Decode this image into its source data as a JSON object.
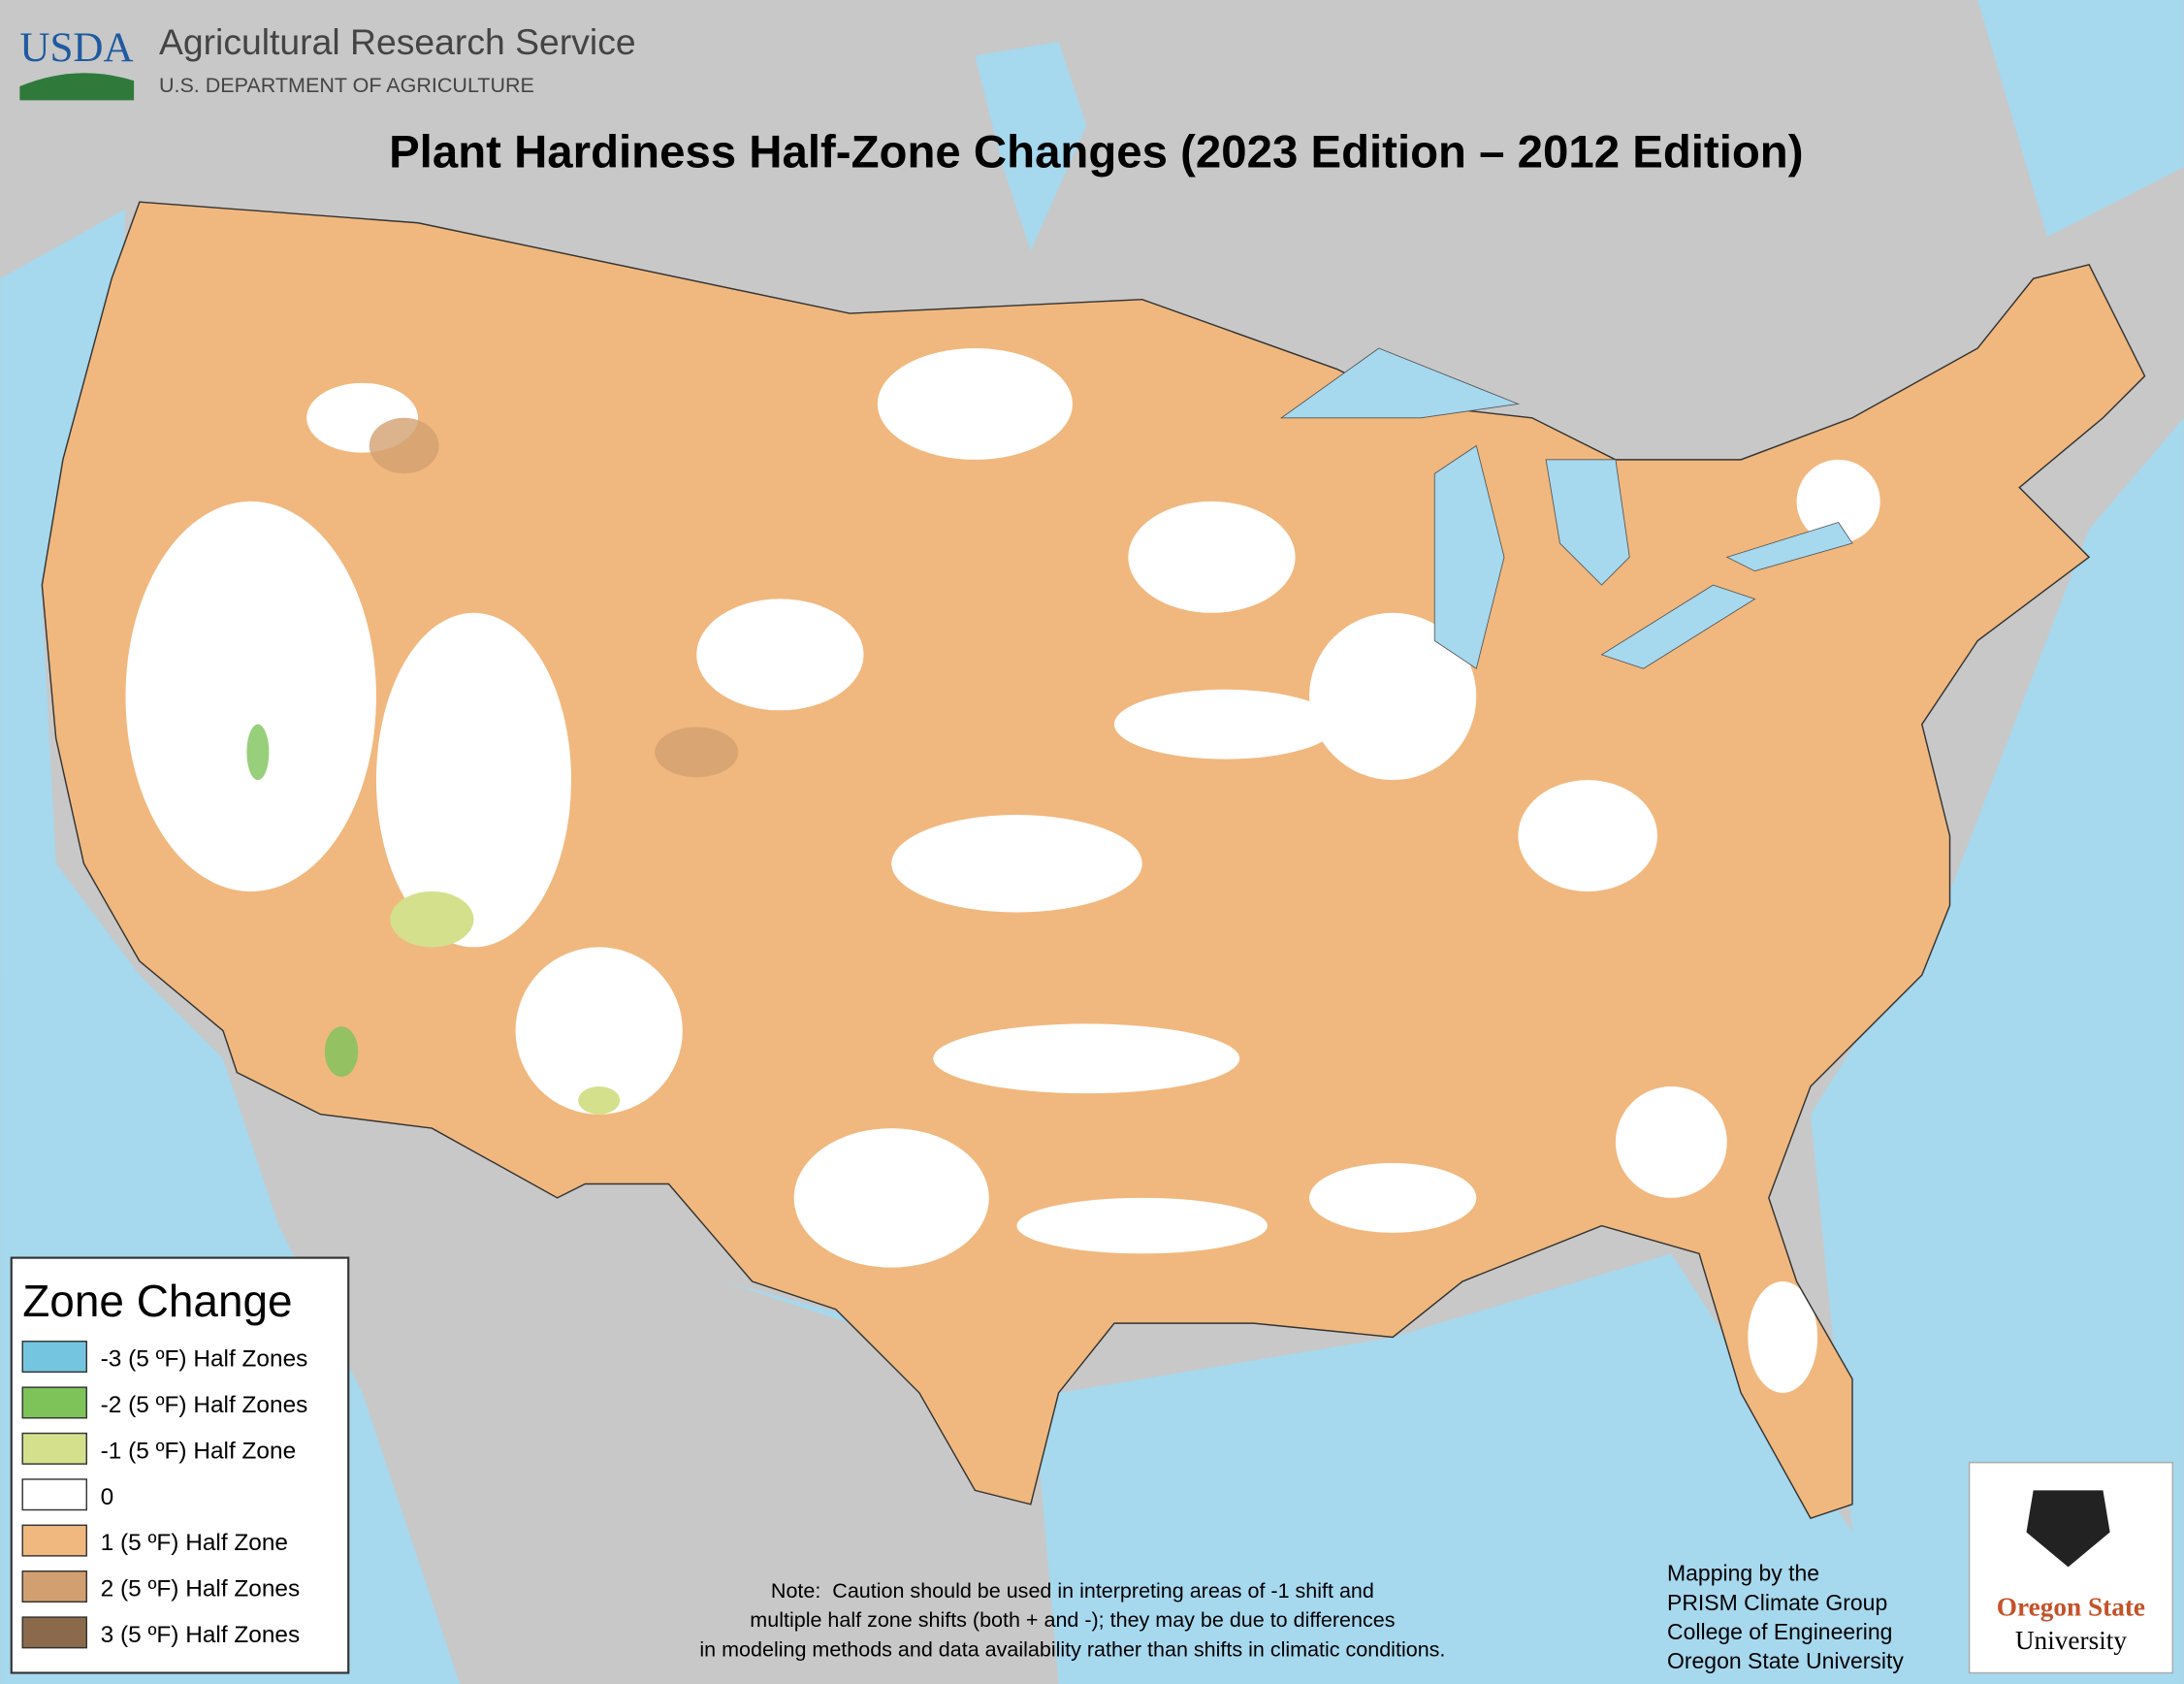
{
  "header": {
    "agency_logo": "USDA",
    "agency": "Agricultural Research Service",
    "department": "U.S. DEPARTMENT OF AGRICULTURE"
  },
  "title": "Plant Hardiness Half-Zone Changes (2023 Edition – 2012 Edition)",
  "legend": {
    "title": "Zone Change",
    "items": [
      {
        "label": "-3 (5 ºF) Half Zones",
        "color": "#74c6e0"
      },
      {
        "label": "-2 (5 ºF) Half Zones",
        "color": "#7dc35a"
      },
      {
        "label": "-1 (5 ºF) Half Zone",
        "color": "#d4e08c"
      },
      {
        "label": "0",
        "color": "#ffffff"
      },
      {
        "label": "1 (5 ºF) Half Zone",
        "color": "#f0b87e"
      },
      {
        "label": "2 (5 ºF) Half Zones",
        "color": "#d2a070"
      },
      {
        "label": "3 (5 ºF) Half Zones",
        "color": "#8a6a4a"
      }
    ]
  },
  "note": [
    "Note:  Caution should be used in interpreting areas of -1 shift and",
    "multiple half zone shifts (both + and -); they may be due to differences",
    "in modeling methods and data availability rather than shifts in climatic conditions."
  ],
  "credits": [
    "Mapping by the",
    "PRISM Climate Group",
    "College of Engineering",
    "Oregon State University"
  ],
  "university_logo": [
    "Oregon State",
    "University"
  ]
}
